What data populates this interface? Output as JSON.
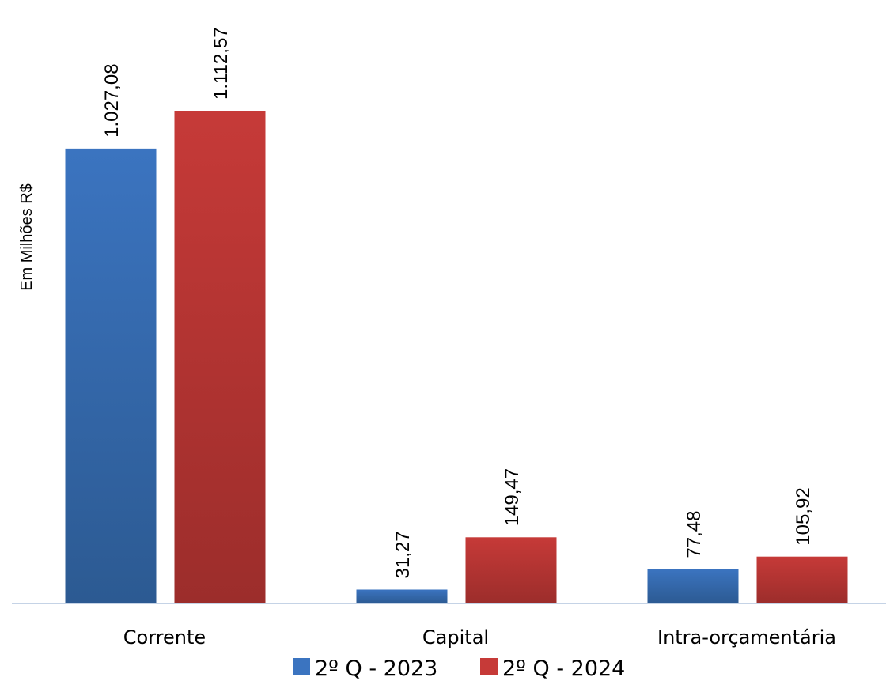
{
  "chart_data": {
    "type": "bar",
    "categories": [
      "Corrente",
      "Capital",
      "Intra-orçamentária"
    ],
    "series": [
      {
        "name": "2º Q - 2023",
        "color": "#3B74C0",
        "values": [
          1027.08,
          31.27,
          77.48
        ],
        "value_labels": [
          "1.027,08",
          "31,27",
          "77,48"
        ]
      },
      {
        "name": "2º Q - 2024",
        "color": "#C63A38",
        "values": [
          1112.57,
          149.47,
          105.92
        ],
        "value_labels": [
          "1.112,57",
          "149,47",
          "105,92"
        ]
      }
    ],
    "ylabel": "Em Milhões R$",
    "ylim": [
      0,
      1112.57
    ],
    "grid": false,
    "legend_position": "bottom"
  }
}
